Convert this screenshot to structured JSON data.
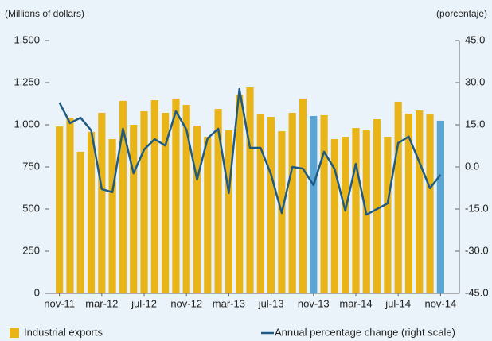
{
  "chart_data": {
    "type": "bar",
    "y_label": "(Millions of dollars)",
    "y2_label": "(porcentaje)",
    "categories": [
      "nov-11",
      null,
      null,
      null,
      "mar-12",
      null,
      null,
      null,
      "jul-12",
      null,
      null,
      null,
      "nov-12",
      null,
      null,
      null,
      "mar-13",
      null,
      null,
      null,
      "jul-13",
      null,
      null,
      null,
      "nov-13",
      null,
      null,
      null,
      "mar-14",
      null,
      null,
      null,
      "jul-14",
      null,
      null,
      null,
      "nov-14"
    ],
    "series": [
      {
        "name": "Industrial exports",
        "type": "bar",
        "color": "#e8b418",
        "colors": [
          "#e8b418",
          "#e8b418",
          "#e8b418",
          "#e8b418",
          "#e8b418",
          "#e8b418",
          "#e8b418",
          "#e8b418",
          "#e8b418",
          "#e8b418",
          "#e8b418",
          "#e8b418",
          "#e8b418",
          "#e8b418",
          "#e8b418",
          "#e8b418",
          "#e8b418",
          "#e8b418",
          "#e8b418",
          "#e8b418",
          "#e8b418",
          "#e8b418",
          "#e8b418",
          "#e8b418",
          "#5aa5d2",
          "#e8b418",
          "#e8b418",
          "#e8b418",
          "#e8b418",
          "#e8b418",
          "#e8b418",
          "#e8b418",
          "#e8b418",
          "#e8b418",
          "#e8b418",
          "#e8b418",
          "#5aa5d2"
        ],
        "values": [
          990,
          1042,
          840,
          958,
          1071,
          915,
          1142,
          1000,
          1080,
          1146,
          1071,
          1156,
          1118,
          995,
          929,
          1094,
          967,
          1179,
          1222,
          1061,
          1047,
          962,
          1071,
          1156,
          1052,
          1057,
          915,
          929,
          981,
          967,
          1033,
          929,
          1137,
          1066,
          1085,
          1061,
          1024
        ]
      },
      {
        "name": "Annual percentage change (right scale)",
        "type": "line",
        "axis": "y2",
        "color": "#1f5a85",
        "values": [
          22.9,
          15.6,
          17.5,
          13,
          -7.9,
          -9,
          13.6,
          -2.3,
          6.2,
          9.9,
          7.6,
          19.8,
          13.3,
          -4.5,
          10.2,
          13.6,
          -9.3,
          27.7,
          6.8,
          6.8,
          -2.8,
          -16.4,
          0,
          -0.6,
          -6.5,
          5.4,
          -0.8,
          -15.6,
          1.1,
          -17,
          -15,
          -13,
          8.5,
          10.8,
          1.7,
          -7.6,
          -2.8
        ]
      }
    ],
    "ylim": [
      0,
      1500
    ],
    "yticks": [
      0,
      250,
      500,
      750,
      {
        "value": 1000,
        "label": "1,000"
      },
      {
        "value": 1250,
        "label": "1,250"
      },
      {
        "value": 1500,
        "label": "1,500"
      }
    ],
    "y2lim": [
      -45,
      45
    ],
    "y2ticks": [
      {
        "value": -45,
        "label": "-45.0"
      },
      {
        "value": -30,
        "label": "-30.0"
      },
      {
        "value": -15,
        "label": "-15.0"
      },
      {
        "value": 0,
        "label": "0.0"
      },
      {
        "value": 15,
        "label": "15.0"
      },
      {
        "value": 30,
        "label": "30.0"
      },
      {
        "value": 45,
        "label": "45.0"
      }
    ],
    "grid": false
  }
}
